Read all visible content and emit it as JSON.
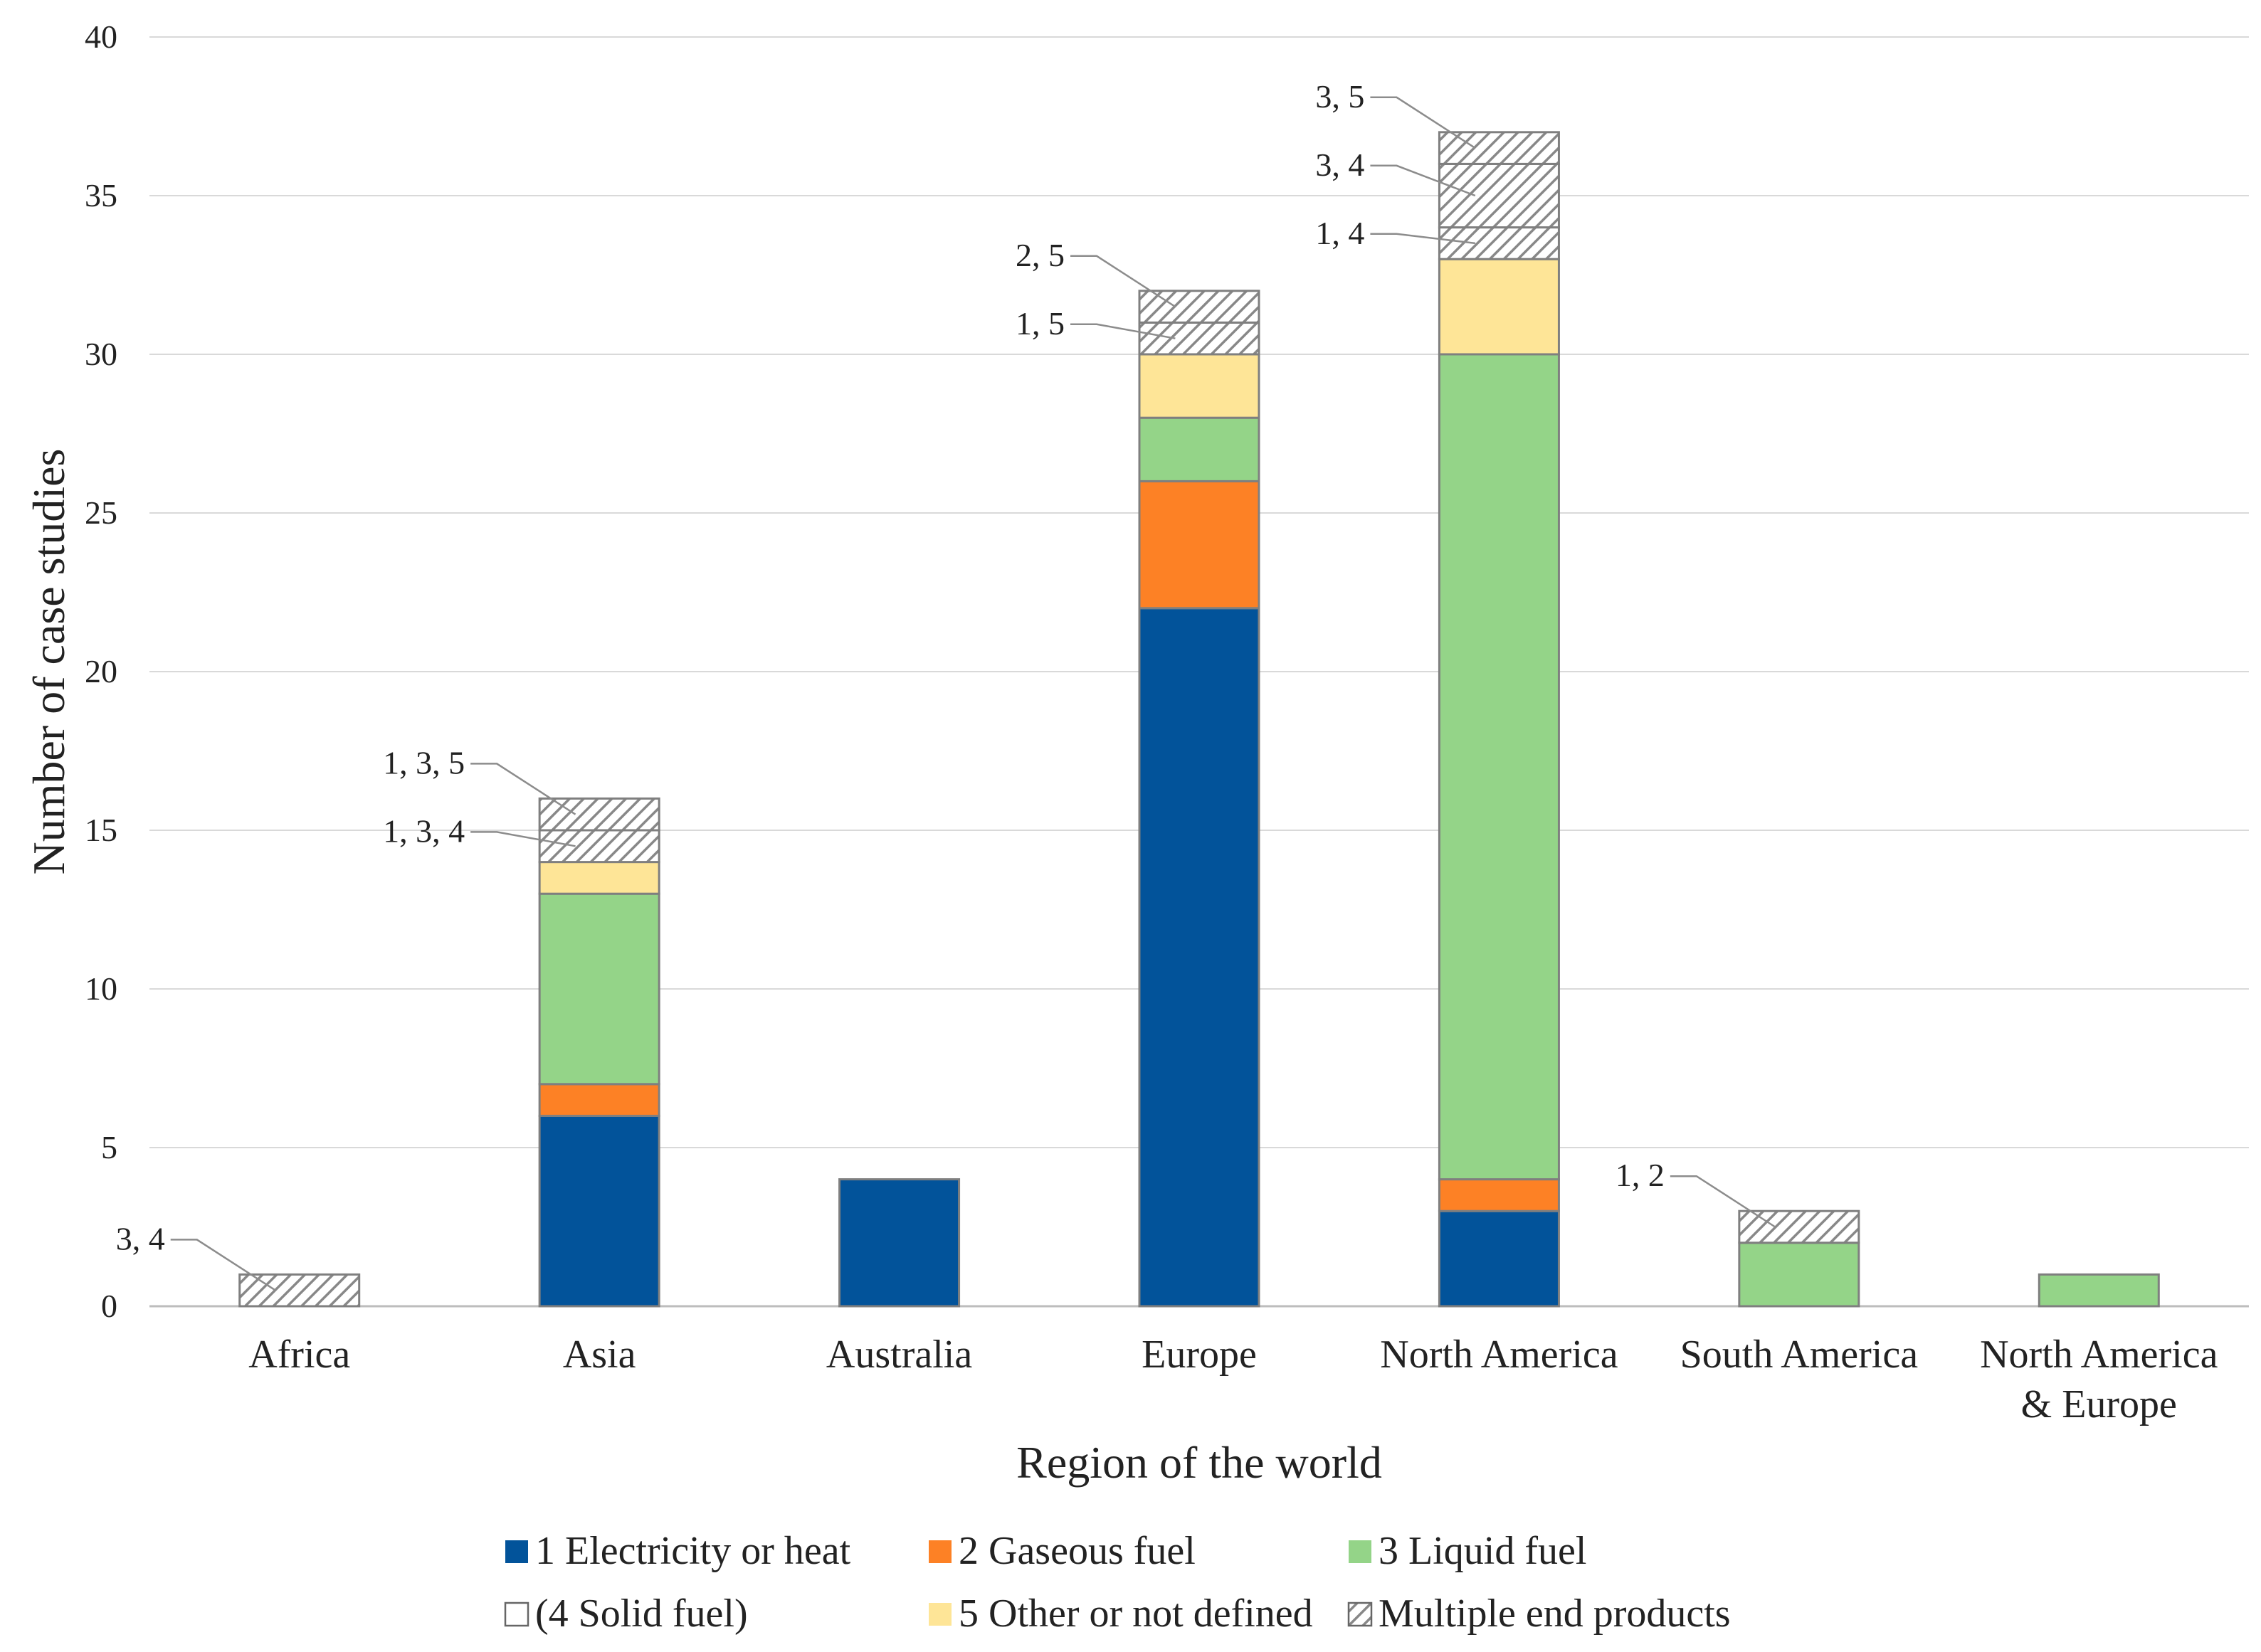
{
  "chart_data": {
    "type": "bar",
    "stacked": true,
    "title": "",
    "xlabel": "Region of the world",
    "ylabel": "Number of case studies",
    "ylim": [
      0,
      40
    ],
    "yticks": [
      0,
      5,
      10,
      15,
      20,
      25,
      30,
      35,
      40
    ],
    "grid": true,
    "legend_position": "bottom",
    "categories": [
      [
        "Africa"
      ],
      [
        "Asia"
      ],
      [
        "Australia"
      ],
      [
        "Europe"
      ],
      [
        "North America"
      ],
      [
        "South America"
      ],
      [
        "North America",
        "& Europe"
      ]
    ],
    "stacks": [
      [
        {
          "series": "multi",
          "value": 1,
          "label": "3, 4"
        }
      ],
      [
        {
          "series": "elec",
          "value": 6
        },
        {
          "series": "gas",
          "value": 1
        },
        {
          "series": "liquid",
          "value": 6
        },
        {
          "series": "other",
          "value": 1
        },
        {
          "series": "multi",
          "value": 1,
          "label": "1, 3, 4"
        },
        {
          "series": "multi",
          "value": 1,
          "label": "1, 3, 5"
        }
      ],
      [
        {
          "series": "elec",
          "value": 4
        }
      ],
      [
        {
          "series": "elec",
          "value": 22
        },
        {
          "series": "gas",
          "value": 4
        },
        {
          "series": "liquid",
          "value": 2
        },
        {
          "series": "other",
          "value": 2
        },
        {
          "series": "multi",
          "value": 1,
          "label": "1, 5"
        },
        {
          "series": "multi",
          "value": 1,
          "label": "2, 5"
        }
      ],
      [
        {
          "series": "elec",
          "value": 3
        },
        {
          "series": "gas",
          "value": 1
        },
        {
          "series": "liquid",
          "value": 26
        },
        {
          "series": "other",
          "value": 3
        },
        {
          "series": "multi",
          "value": 1,
          "label": "1, 4"
        },
        {
          "series": "multi",
          "value": 2,
          "label": "3, 4"
        },
        {
          "series": "multi",
          "value": 1,
          "label": "3, 5"
        }
      ],
      [
        {
          "series": "liquid",
          "value": 2
        },
        {
          "series": "multi",
          "value": 1,
          "label": "1, 2"
        }
      ],
      [
        {
          "series": "liquid",
          "value": 1
        }
      ]
    ],
    "series": [
      {
        "key": "elec",
        "name": "1 Electricity or heat",
        "color": "#02539a"
      },
      {
        "key": "gas",
        "name": "2 Gaseous fuel",
        "color": "#fd8125"
      },
      {
        "key": "liquid",
        "name": "3 Liquid fuel",
        "color": "#94d488"
      },
      {
        "key": "solid",
        "name": "(4 Solid fuel)",
        "color": "#ffffff"
      },
      {
        "key": "other",
        "name": "5 Other or not defined",
        "color": "#fee597"
      },
      {
        "key": "multi",
        "name": "Multiple end products",
        "color": "hatch"
      }
    ]
  }
}
